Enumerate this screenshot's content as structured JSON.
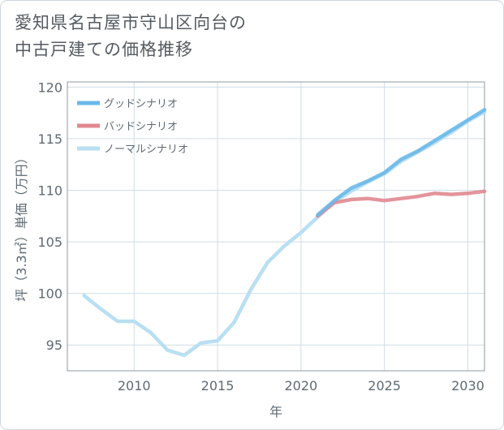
{
  "title": {
    "line1": "愛知県名古屋市守山区向台の",
    "line2": "中古戸建ての価格推移"
  },
  "chart_data": {
    "type": "line",
    "title": "愛知県名古屋市守山区向台の中古戸建ての価格推移",
    "xlabel": "年",
    "ylabel": "坪（3.3㎡）単価（万円）",
    "xlim": [
      2006,
      2031
    ],
    "ylim": [
      92.5,
      120.5
    ],
    "xticks": [
      2010,
      2015,
      2020,
      2025,
      2030
    ],
    "yticks": [
      95,
      100,
      105,
      110,
      115,
      120
    ],
    "grid": true,
    "legend_position": "top-left",
    "series": [
      {
        "name": "グッドシナリオ",
        "color": "#6ab8e8",
        "x": [
          2021,
          2022,
          2023,
          2024,
          2025,
          2026,
          2027,
          2028,
          2029,
          2030,
          2031
        ],
        "values": [
          107.6,
          109.0,
          110.2,
          110.9,
          111.7,
          113.0,
          113.8,
          114.8,
          115.8,
          116.8,
          117.8
        ]
      },
      {
        "name": "バッドシナリオ",
        "color": "#e08890",
        "x": [
          2021,
          2022,
          2023,
          2024,
          2025,
          2026,
          2027,
          2028,
          2029,
          2030,
          2031
        ],
        "values": [
          107.5,
          108.8,
          109.1,
          109.2,
          109.0,
          109.2,
          109.4,
          109.7,
          109.6,
          109.7,
          109.9
        ]
      },
      {
        "name": "ノーマルシナリオ",
        "color": "#b8dff2",
        "x": [
          2007,
          2008,
          2009,
          2010,
          2011,
          2012,
          2013,
          2014,
          2015,
          2016,
          2017,
          2018,
          2019,
          2020,
          2021,
          2022,
          2023,
          2024,
          2025,
          2026,
          2027,
          2028,
          2029,
          2030,
          2031
        ],
        "values": [
          99.8,
          98.5,
          97.3,
          97.3,
          96.2,
          94.5,
          94.0,
          95.2,
          95.4,
          97.2,
          100.4,
          103.0,
          104.6,
          105.9,
          107.4,
          108.9,
          109.9,
          110.8,
          111.6,
          112.8,
          113.7,
          114.6,
          115.6,
          116.7,
          117.6
        ]
      }
    ]
  }
}
